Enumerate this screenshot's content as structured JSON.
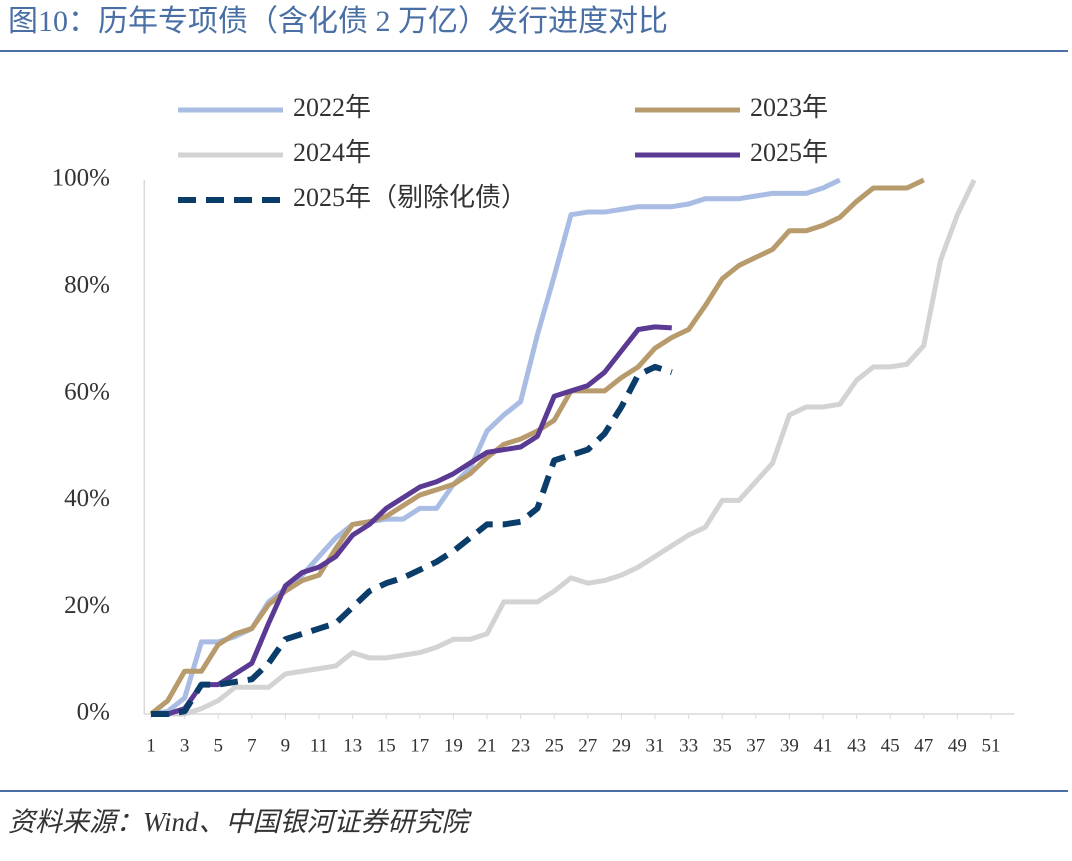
{
  "chart_data": {
    "type": "line",
    "title": "图10：历年专项债（含化债 2 万亿）发行进度对比",
    "source": "资料来源：Wind、中国银河证券研究院",
    "x": [
      1,
      2,
      3,
      4,
      5,
      6,
      7,
      8,
      9,
      10,
      11,
      12,
      13,
      14,
      15,
      16,
      17,
      18,
      19,
      20,
      21,
      22,
      23,
      24,
      25,
      26,
      27,
      28,
      29,
      30,
      31,
      32,
      33,
      34,
      35,
      36,
      37,
      38,
      39,
      40,
      41,
      42,
      43,
      44,
      45,
      46,
      47,
      48,
      49,
      50
    ],
    "xlim": [
      0.6,
      52.4
    ],
    "xticks": [
      1,
      3,
      5,
      7,
      9,
      11,
      13,
      15,
      17,
      19,
      21,
      23,
      25,
      27,
      29,
      31,
      33,
      35,
      37,
      39,
      41,
      43,
      45,
      47,
      49,
      51
    ],
    "ylim": [
      0,
      100
    ],
    "yticks": [
      {
        "value": 0,
        "label": "0%"
      },
      {
        "value": 20,
        "label": "20%"
      },
      {
        "value": 40,
        "label": "40%"
      },
      {
        "value": 60,
        "label": "60%"
      },
      {
        "value": 80,
        "label": "80%"
      },
      {
        "value": 100,
        "label": "100%"
      }
    ],
    "series": [
      {
        "name": "2022年",
        "color": "#a9bce4",
        "linestyle": "solid",
        "values": [
          0,
          0.5,
          3,
          13.5,
          13.5,
          14.5,
          16,
          21,
          23.5,
          26,
          29.5,
          33,
          35.5,
          36,
          36.5,
          36.5,
          38.5,
          38.5,
          43,
          46,
          53,
          56,
          58.5,
          71,
          82,
          93.5,
          94,
          94,
          94.5,
          95,
          95,
          95,
          95.5,
          96.5,
          96.5,
          96.5,
          97,
          97.5,
          97.5,
          97.5,
          98.5,
          100,
          null,
          null,
          null,
          null,
          null,
          null,
          null,
          null
        ]
      },
      {
        "name": "2023年",
        "color": "#b89b6c",
        "linestyle": "solid",
        "values": [
          0,
          2.5,
          8,
          8,
          13,
          15,
          16,
          20.5,
          23,
          25,
          26,
          31,
          35.5,
          36,
          37,
          39,
          41,
          42,
          43,
          45,
          48,
          50.5,
          51.5,
          53,
          55,
          60.5,
          60.5,
          60.5,
          63,
          65,
          68.5,
          70.5,
          72,
          76.5,
          81.5,
          84,
          85.5,
          87,
          90.5,
          90.5,
          91.5,
          93,
          96,
          98.5,
          98.5,
          98.5,
          100,
          null,
          null,
          null
        ]
      },
      {
        "name": "2024年",
        "color": "#d3d3d3",
        "linestyle": "solid",
        "values": [
          0,
          0,
          0,
          1,
          2.5,
          5,
          5,
          5,
          7.5,
          8,
          8.5,
          9,
          11.5,
          10.5,
          10.5,
          11,
          11.5,
          12.5,
          14,
          14,
          15,
          21,
          21,
          21,
          23,
          25.5,
          24.5,
          25,
          26,
          27.5,
          29.5,
          31.5,
          33.5,
          35,
          40,
          40,
          43.5,
          47,
          56,
          57.5,
          57.5,
          58,
          62.5,
          65,
          65,
          65.5,
          69,
          85,
          93.5,
          100
        ]
      },
      {
        "name": "2025年",
        "color": "#5b3a94",
        "linestyle": "solid",
        "values": [
          0,
          0,
          1,
          5.5,
          5.5,
          7.5,
          9.5,
          17,
          24,
          26.5,
          27.5,
          29.5,
          33.5,
          35.5,
          38.5,
          40.5,
          42.5,
          43.5,
          45,
          47,
          49,
          49.5,
          50,
          52,
          59.5,
          60.5,
          61.5,
          64,
          68,
          72,
          72.5,
          72.3,
          null,
          null,
          null,
          null,
          null,
          null,
          null,
          null,
          null,
          null,
          null,
          null,
          null,
          null,
          null,
          null,
          null,
          null
        ]
      },
      {
        "name": "2025年（剔除化债）",
        "color": "#0b3d6b",
        "linestyle": "dashed",
        "values": [
          0,
          0,
          0.5,
          5.5,
          5.5,
          6,
          6.5,
          9.5,
          14,
          15,
          16,
          17,
          20,
          23,
          24.5,
          25.5,
          27,
          28.5,
          30.5,
          33,
          35.5,
          35.5,
          36,
          38.5,
          47.5,
          48.5,
          49.5,
          52.5,
          57.5,
          63.5,
          65,
          64,
          null,
          null,
          null,
          null,
          null,
          null,
          null,
          null,
          null,
          null,
          null,
          null,
          null,
          null,
          null,
          null,
          null,
          null
        ]
      }
    ]
  }
}
